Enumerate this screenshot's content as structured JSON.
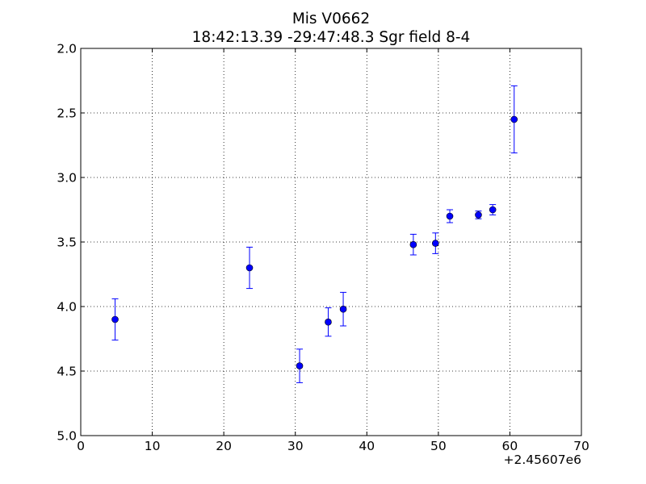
{
  "chart_data": {
    "type": "scatter",
    "title": "Mis V0662",
    "subtitle": "18:42:13.39 -29:47:48.3 Sgr field 8-4",
    "xlabel": "",
    "ylabel": "",
    "x_offset_label": "+2.45607e6",
    "xlim": [
      0,
      70
    ],
    "ylim": [
      2.0,
      5.0
    ],
    "y_inverted": true,
    "grid": true,
    "x_ticks": [
      0,
      10,
      20,
      30,
      40,
      50,
      60,
      70
    ],
    "y_ticks": [
      2.0,
      2.5,
      3.0,
      3.5,
      4.0,
      4.5,
      5.0
    ],
    "x_tick_labels": [
      "0",
      "10",
      "20",
      "30",
      "40",
      "50",
      "60",
      "70"
    ],
    "y_tick_labels": [
      "2.0",
      "2.5",
      "3.0",
      "3.5",
      "4.0",
      "4.5",
      "5.0"
    ],
    "marker_color": "#0000ff",
    "errorbar_color": "#0000ff",
    "points": [
      {
        "x": 4.8,
        "y": 4.1,
        "err": 0.16
      },
      {
        "x": 23.6,
        "y": 3.7,
        "err": 0.16
      },
      {
        "x": 30.6,
        "y": 4.46,
        "err": 0.13
      },
      {
        "x": 34.6,
        "y": 4.12,
        "err": 0.11
      },
      {
        "x": 36.7,
        "y": 4.02,
        "err": 0.13
      },
      {
        "x": 46.5,
        "y": 3.52,
        "err": 0.08
      },
      {
        "x": 49.6,
        "y": 3.51,
        "err": 0.08
      },
      {
        "x": 51.6,
        "y": 3.3,
        "err": 0.05
      },
      {
        "x": 55.6,
        "y": 3.29,
        "err": 0.03
      },
      {
        "x": 57.6,
        "y": 3.25,
        "err": 0.04
      },
      {
        "x": 60.6,
        "y": 2.55,
        "err": 0.26
      }
    ]
  }
}
